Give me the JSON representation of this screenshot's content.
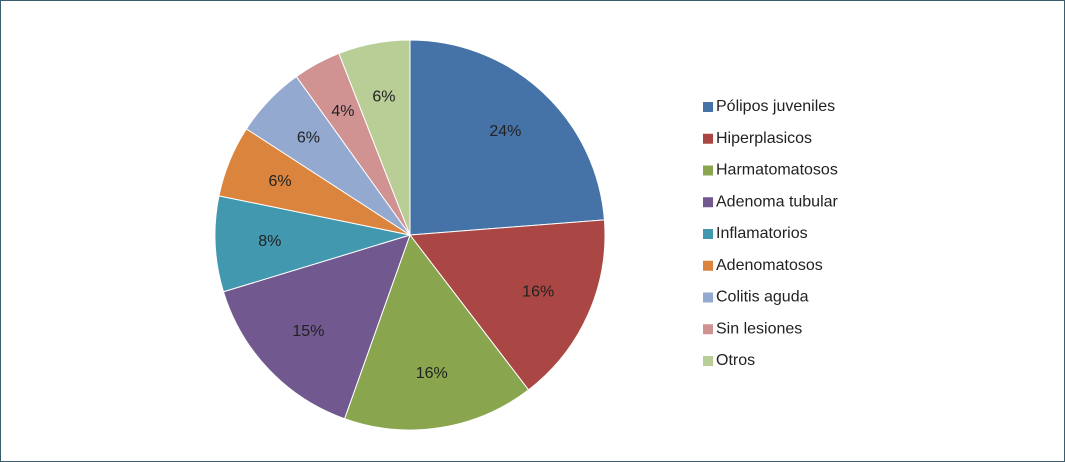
{
  "chart_data": {
    "type": "pie",
    "categories": [
      "Pólipos juveniles",
      "Hiperplasicos",
      "Harmatomatosos",
      "Adenoma tubular",
      "Inflamatorios",
      "Adenomatosos",
      "Colitis aguda",
      "Sin lesiones",
      "Otros"
    ],
    "values": [
      24,
      16,
      16,
      15,
      8,
      6,
      6,
      4,
      6
    ],
    "value_labels": [
      "24%",
      "16%",
      "16%",
      "15%",
      "8%",
      "6%",
      "6%",
      "4%",
      "6%"
    ],
    "colors": [
      "#4572a7",
      "#aa4643",
      "#89a54e",
      "#71588f",
      "#4198af",
      "#db843d",
      "#93a9cf",
      "#d19392",
      "#b9cd96"
    ],
    "legend": "right"
  }
}
